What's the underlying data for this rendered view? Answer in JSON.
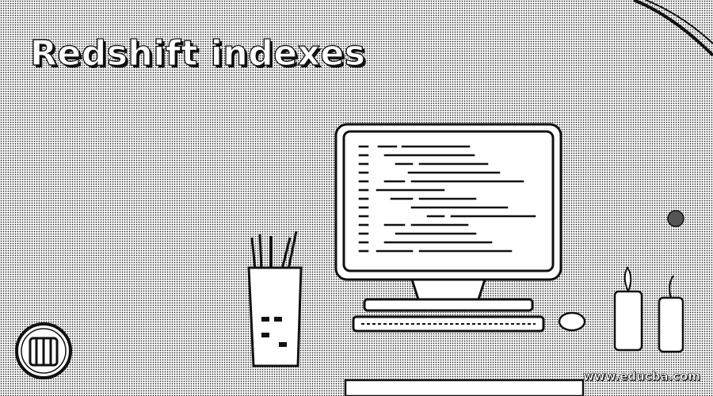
{
  "banner": {
    "title": "Redshift indexes",
    "watermark": "www.educba.com"
  },
  "icons": {
    "logo": "database-cylinder-icon",
    "illustration": "desktop-computer-with-code"
  },
  "colors": {
    "ink": "#111111",
    "paper": "#f4f4f4",
    "screen": "#ffffff"
  }
}
